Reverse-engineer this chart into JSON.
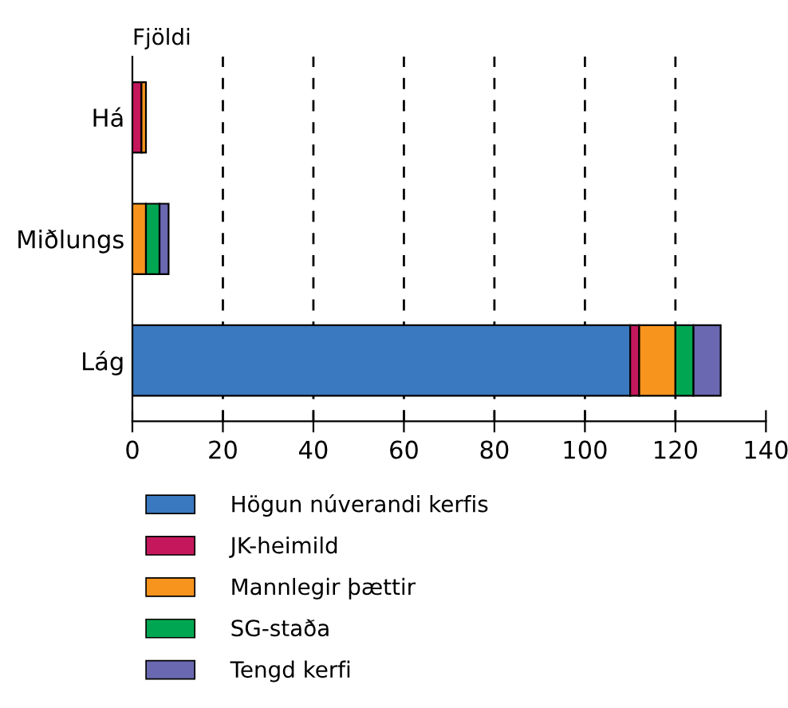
{
  "chart_data": {
    "type": "bar",
    "orientation": "horizontal",
    "stacked": true,
    "ylabel": "Fjöldi",
    "categories": [
      "Há",
      "Miðlungs",
      "Lág"
    ],
    "series": [
      {
        "name": "Högun núverandi kerfis",
        "color": "#3a78bf",
        "values": [
          null,
          null,
          110
        ]
      },
      {
        "name": "JK-heimild",
        "color": "#c4175c",
        "values": [
          2,
          null,
          2
        ]
      },
      {
        "name": "Mannlegir þættir",
        "color": "#f7941d",
        "values": [
          1,
          3,
          8
        ]
      },
      {
        "name": "SG-staða",
        "color": "#00a651",
        "values": [
          null,
          3,
          4
        ]
      },
      {
        "name": "Tengd kerfi",
        "color": "#6a68b0",
        "values": [
          null,
          2,
          6
        ]
      }
    ],
    "xlim": [
      0,
      140
    ],
    "xticks": [
      0,
      20,
      40,
      60,
      80,
      100,
      120,
      140
    ],
    "grid": "x",
    "legend": "bottom"
  }
}
